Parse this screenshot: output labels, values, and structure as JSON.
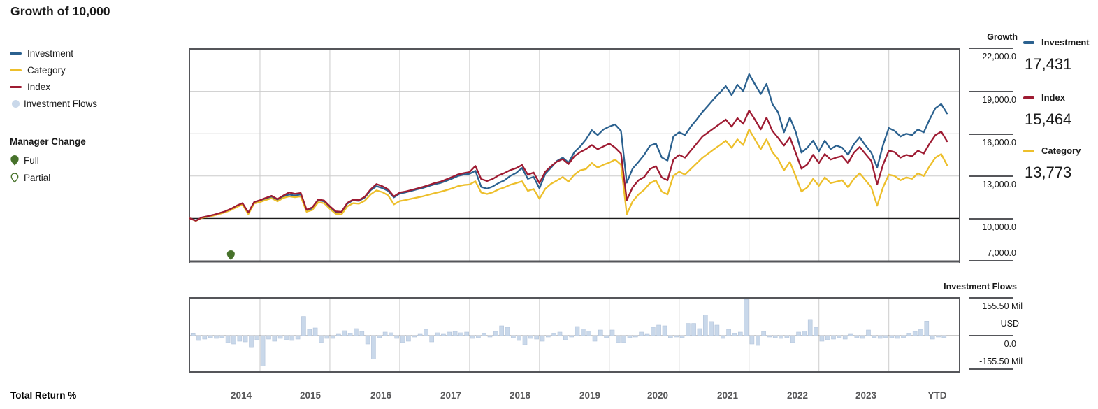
{
  "title": "Growth of 10,000",
  "legend": {
    "items": [
      {
        "label": "Investment",
        "color": "#2B618F",
        "type": "line"
      },
      {
        "label": "Category",
        "color": "#EDBF2B",
        "type": "line"
      },
      {
        "label": "Index",
        "color": "#9E1B32",
        "type": "line"
      },
      {
        "label": "Investment Flows",
        "color": "#C9D8EA",
        "type": "dot"
      }
    ]
  },
  "manager_change": {
    "heading": "Manager Change",
    "items": [
      {
        "label": "Full",
        "style": "filled",
        "color": "#47722B"
      },
      {
        "label": "Partial",
        "style": "hollow",
        "color": "#47722B"
      }
    ]
  },
  "right_panel": {
    "items": [
      {
        "label": "Investment",
        "value": "17,431",
        "color": "#2B618F"
      },
      {
        "label": "Index",
        "value": "15,464",
        "color": "#9E1B32"
      },
      {
        "label": "Category",
        "value": "13,773",
        "color": "#EDBF2B"
      }
    ]
  },
  "growth_axis": {
    "header": "Growth",
    "ticks": [
      "22,000.0",
      "19,000.0",
      "16,000.0",
      "13,000.0",
      "10,000.0",
      "7,000.0"
    ]
  },
  "flows_axis": {
    "header": "Investment Flows",
    "ticks": [
      "155.50 Mil",
      "USD",
      "0.0",
      "-155.50 Mil"
    ]
  },
  "x_axis": {
    "labels": [
      "2014",
      "2015",
      "2016",
      "2017",
      "2018",
      "2019",
      "2020",
      "2021",
      "2022",
      "2023",
      "YTD"
    ]
  },
  "footer": {
    "label": "Total Return %"
  },
  "chart_data": [
    {
      "type": "line",
      "title": "Growth of 10,000",
      "x_unit": "month",
      "x_start": "Jan 2014",
      "x_end": "Oct 2024 (YTD)",
      "ylim": [
        7000,
        22000
      ],
      "gridline_values": [
        22000,
        19000,
        16000,
        13000,
        10000,
        7000
      ],
      "baseline_value": 10000,
      "manager_change_full_month_index": 7,
      "legend_position": "left",
      "series": [
        {
          "name": "Investment",
          "color": "#2B618F",
          "final_value": 17431,
          "values": [
            10000,
            9850,
            10060,
            10150,
            10230,
            10350,
            10480,
            10650,
            10880,
            11050,
            10360,
            11120,
            11240,
            11400,
            11530,
            11310,
            11560,
            11690,
            11620,
            11700,
            10560,
            10710,
            11280,
            11210,
            10800,
            10450,
            10420,
            11050,
            11290,
            11240,
            11480,
            12000,
            12280,
            12150,
            11950,
            11490,
            11760,
            11840,
            11950,
            12060,
            12160,
            12290,
            12420,
            12510,
            12660,
            12820,
            13000,
            13100,
            13160,
            13370,
            12230,
            12110,
            12260,
            12510,
            12700,
            13010,
            13220,
            13570,
            12800,
            12940,
            12130,
            13160,
            13600,
            14070,
            14300,
            13950,
            14700,
            15100,
            15600,
            16250,
            15900,
            16300,
            16500,
            16650,
            16200,
            12530,
            13520,
            14000,
            14510,
            15160,
            15300,
            14320,
            14100,
            15800,
            16100,
            15900,
            16500,
            17000,
            17540,
            18000,
            18480,
            18900,
            19370,
            18730,
            19470,
            19000,
            20220,
            19500,
            18800,
            19520,
            18100,
            17500,
            16100,
            17140,
            16150,
            14660,
            15010,
            15510,
            14760,
            15510,
            14910,
            15160,
            15010,
            14510,
            15260,
            15750,
            15160,
            14660,
            13600,
            15200,
            16400,
            16200,
            15800,
            16000,
            15900,
            16300,
            16100,
            17000,
            17800,
            18100,
            17431
          ]
        },
        {
          "name": "Index",
          "color": "#9E1B32",
          "final_value": 15464,
          "values": [
            10000,
            9830,
            10070,
            10160,
            10250,
            10370,
            10500,
            10680,
            10900,
            11080,
            10420,
            11160,
            11290,
            11450,
            11600,
            11360,
            11620,
            11840,
            11740,
            11800,
            10620,
            10780,
            11340,
            11270,
            10860,
            10500,
            10470,
            11100,
            11330,
            11290,
            11530,
            12060,
            12430,
            12280,
            12060,
            11560,
            11830,
            11900,
            12010,
            12120,
            12230,
            12360,
            12500,
            12600,
            12760,
            12930,
            13110,
            13210,
            13280,
            13720,
            12780,
            12650,
            12800,
            13050,
            13220,
            13420,
            13560,
            13780,
            13100,
            13250,
            12500,
            13300,
            13700,
            14020,
            14200,
            13850,
            14400,
            14700,
            14910,
            15200,
            14900,
            15100,
            15300,
            15010,
            14600,
            11290,
            12200,
            12700,
            12930,
            13500,
            13700,
            12900,
            12700,
            14170,
            14500,
            14300,
            14800,
            15300,
            15800,
            16100,
            16400,
            16700,
            17000,
            16500,
            17100,
            16700,
            17640,
            17000,
            16300,
            17140,
            16200,
            15700,
            15160,
            15750,
            14660,
            13520,
            13820,
            14510,
            13920,
            14560,
            14170,
            14310,
            14410,
            13920,
            14660,
            15060,
            14560,
            14070,
            12400,
            13800,
            14800,
            14700,
            14300,
            14500,
            14400,
            14800,
            14600,
            15300,
            15900,
            16150,
            15464
          ]
        },
        {
          "name": "Category",
          "color": "#EDBF2B",
          "final_value": 13773,
          "values": [
            10000,
            9820,
            10040,
            10120,
            10200,
            10310,
            10430,
            10590,
            10800,
            10980,
            10300,
            11050,
            11160,
            11300,
            11430,
            11210,
            11450,
            11560,
            11500,
            11560,
            10470,
            10600,
            11140,
            11080,
            10680,
            10330,
            10280,
            10850,
            11080,
            11040,
            11250,
            11700,
            11980,
            11860,
            11640,
            10990,
            11230,
            11300,
            11390,
            11480,
            11570,
            11680,
            11790,
            11880,
            12000,
            12130,
            12280,
            12360,
            12400,
            12630,
            11830,
            11730,
            11850,
            12060,
            12200,
            12380,
            12500,
            12630,
            11950,
            12080,
            11390,
            12100,
            12450,
            12680,
            12930,
            12600,
            13100,
            13400,
            13500,
            13920,
            13600,
            13800,
            13950,
            14170,
            13800,
            10300,
            11200,
            11700,
            12030,
            12500,
            12700,
            11900,
            11700,
            13030,
            13300,
            13100,
            13500,
            13900,
            14300,
            14600,
            14910,
            15200,
            15510,
            15000,
            15600,
            15200,
            16300,
            15600,
            14900,
            15600,
            14700,
            14200,
            13400,
            14000,
            13000,
            11900,
            12200,
            12800,
            12300,
            12900,
            12500,
            12600,
            12700,
            12200,
            12800,
            13200,
            12700,
            12200,
            10900,
            12200,
            13100,
            13000,
            12700,
            12900,
            12800,
            13200,
            13000,
            13700,
            14300,
            14560,
            13773
          ]
        }
      ]
    },
    {
      "type": "bar",
      "name": "Investment Flows",
      "unit": "Mil USD",
      "ylim": [
        -155.5,
        155.5
      ],
      "color": "#C9D8EA",
      "x_start": "Jan 2014",
      "x_end": "Oct 2024 (YTD)",
      "values": [
        8,
        -21,
        -15,
        -9,
        -12,
        -9,
        -30,
        -36,
        -24,
        -27,
        -51,
        -18,
        -130,
        -15,
        -24,
        -12,
        -18,
        -21,
        -15,
        82,
        27,
        33,
        -30,
        -12,
        -12,
        6,
        21,
        9,
        30,
        18,
        -36,
        -100,
        -9,
        15,
        12,
        -12,
        -30,
        -24,
        -6,
        6,
        27,
        -27,
        12,
        6,
        15,
        18,
        12,
        15,
        -12,
        -9,
        9,
        -6,
        18,
        42,
        36,
        -9,
        -21,
        -39,
        -12,
        -15,
        -24,
        -6,
        9,
        15,
        -18,
        -6,
        39,
        28,
        20,
        -24,
        24,
        -9,
        24,
        -30,
        -30,
        -9,
        -6,
        15,
        6,
        36,
        45,
        42,
        -9,
        -6,
        -9,
        52,
        52,
        30,
        88,
        60,
        45,
        -12,
        27,
        9,
        15,
        155,
        -36,
        -42,
        18,
        -6,
        -9,
        -12,
        -9,
        -30,
        15,
        20,
        69,
        36,
        -24,
        -18,
        -15,
        -9,
        -15,
        6,
        -9,
        -12,
        24,
        -9,
        -12,
        -9,
        -9,
        -12,
        -9,
        9,
        18,
        27,
        62,
        -15,
        -6,
        -9
      ]
    }
  ]
}
